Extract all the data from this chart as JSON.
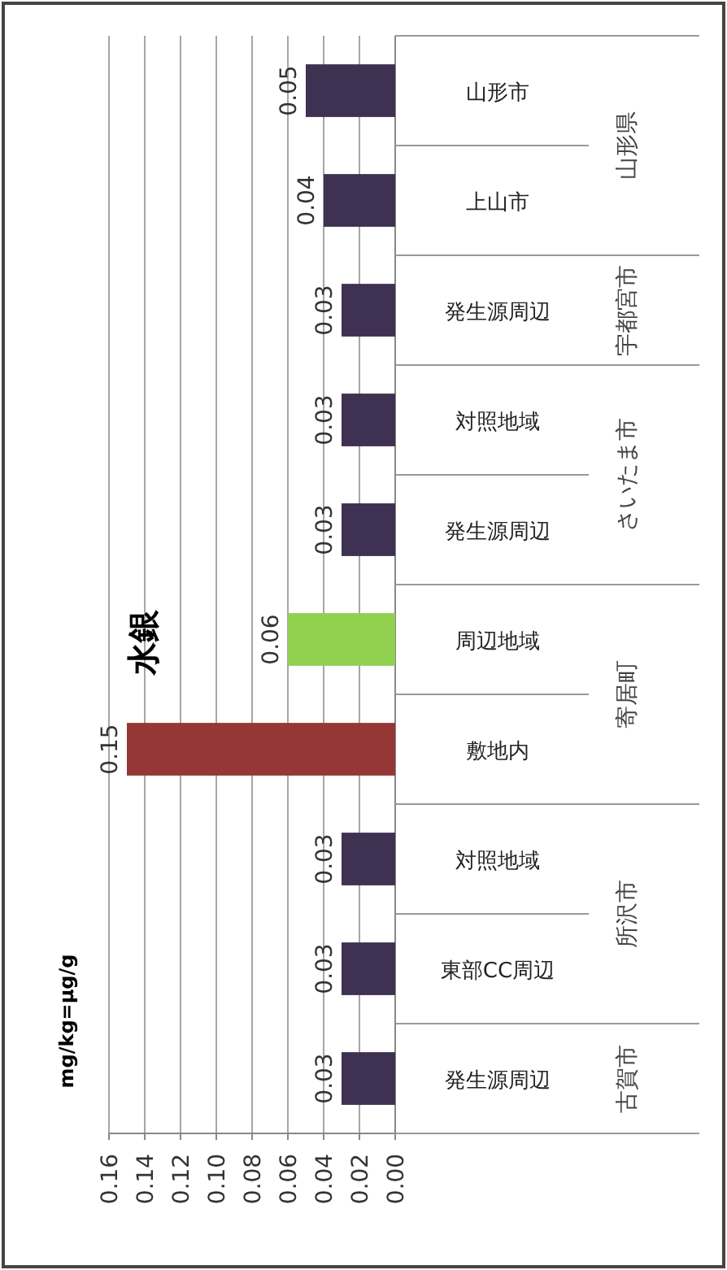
{
  "chart_data": {
    "type": "bar",
    "orientation": "horizontal",
    "title": "水銀",
    "categories": [
      "山形市",
      "上山市",
      "発生源周辺",
      "対照地域",
      "発生源周辺",
      "周辺地域",
      "敷地内",
      "対照地域",
      "東部CC周辺",
      "発生源周辺"
    ],
    "values": [
      0.05,
      0.04,
      0.03,
      0.03,
      0.03,
      0.06,
      0.15,
      0.03,
      0.03,
      0.03
    ],
    "colors": [
      "#3f3151",
      "#3f3151",
      "#3f3151",
      "#3f3151",
      "#3f3151",
      "#92d050",
      "#953735",
      "#3f3151",
      "#3f3151",
      "#3f3151"
    ],
    "xlim": [
      0.16,
      0
    ],
    "xticks": [
      {
        "value": 0.16,
        "label": "0.16"
      },
      {
        "value": 0.14,
        "label": "0.14"
      },
      {
        "value": 0.12,
        "label": "0.12"
      },
      {
        "value": 0.1,
        "label": "0.10"
      },
      {
        "value": 0.08,
        "label": "0.08"
      },
      {
        "value": 0.06,
        "label": "0.06"
      },
      {
        "value": 0.04,
        "label": "0.04"
      },
      {
        "value": 0.02,
        "label": "0.02"
      },
      {
        "value": 0,
        "label": "0.00"
      }
    ],
    "grid": "x",
    "data_labels": true,
    "annotations": [
      "mg/kg=μg/g",
      "山形県",
      "宇都宮市",
      "さいたま市",
      "寄居町",
      "所沢市",
      "古賀市"
    ]
  }
}
